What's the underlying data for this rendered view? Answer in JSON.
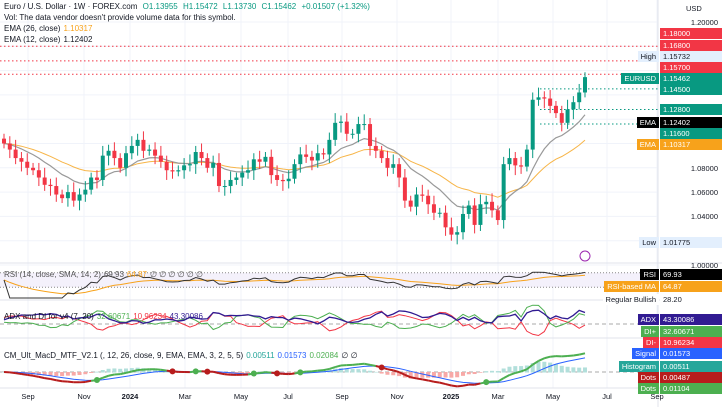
{
  "header": {
    "symbol": "Euro / U.S. Dollar · 1W · FOREX.com",
    "open": "O1.13955",
    "high": "H1.15472",
    "low": "L1.13730",
    "close": "C1.15462",
    "change": "+0.01507 (+1.32%)",
    "vol_note": "Vol: The data vendor doesn't provide volume data for this symbol.",
    "ema26_label": "EMA (26, close)",
    "ema26_value": "1.10317",
    "ema12_label": "EMA (12, close)",
    "ema12_value": "1.12402"
  },
  "rsi_legend": {
    "label": "RSI (14, close, SMA, 14, 2)",
    "rsi": "69.93",
    "ma": "64.87",
    "extras": "∅ ∅ ∅ ∅ ∅ ∅"
  },
  "adx_legend": {
    "label": "ADX and DI for v4 (7, 20)",
    "di_plus": "32.60671",
    "di_minus": "10.96234",
    "adx": "43.30086"
  },
  "macd_legend": {
    "label": "CM_Ult_MacD_MTF_V2.1 (, 12, 26, close, 9, EMA, EMA, 3, 2, 5, 5)",
    "hist": "0.00511",
    "signal": "0.01573",
    "macd": "0.02084",
    "extras": "∅ ∅"
  },
  "price_axis": {
    "currency": "USD",
    "ticks": [
      "1.20000",
      "1.08000",
      "1.06000",
      "1.04000",
      "1.00000"
    ],
    "tags": [
      {
        "label": "",
        "value": "1.18000",
        "color": "#f23645"
      },
      {
        "label": "",
        "value": "1.16800",
        "color": "#f23645"
      },
      {
        "label": "High",
        "value": "1.15732",
        "color": "#e3effd"
      },
      {
        "label": "",
        "value": "1.15700",
        "color": "#f23645"
      },
      {
        "label": "EURUSD",
        "value": "1.15462",
        "color": "#089981"
      },
      {
        "label": "",
        "value": "1.14500",
        "color": "#089981"
      },
      {
        "label": "",
        "value": "1.12800",
        "color": "#089981"
      },
      {
        "label": "EMA",
        "value": "1.12402",
        "color": "#000000"
      },
      {
        "label": "",
        "value": "1.11600",
        "color": "#089981"
      },
      {
        "label": "EMA",
        "value": "1.10317",
        "color": "#f7a21b"
      },
      {
        "label": "Low",
        "value": "1.01775",
        "color": "#e3effd"
      }
    ],
    "lower_tags": [
      {
        "label": "RSI",
        "value": "69.93",
        "color": "#000000"
      },
      {
        "label": "RSI-based MA",
        "value": "64.87",
        "color": "#f7a21b"
      },
      {
        "label": "Regular Bullish",
        "value": "28.20",
        "color": "#ffffff"
      },
      {
        "label": "ADX",
        "value": "43.30086",
        "color": "#311b92"
      },
      {
        "label": "DI+",
        "value": "32.60671",
        "color": "#4caf50"
      },
      {
        "label": "DI-",
        "value": "10.96234",
        "color": "#f23645"
      },
      {
        "label": "Signal",
        "value": "0.01573",
        "color": "#2962ff"
      },
      {
        "label": "Histogram",
        "value": "0.00511",
        "color": "#26a69a"
      },
      {
        "label": "Dots",
        "value": "0.00487",
        "color": "#b71c1c"
      },
      {
        "label": "Dots",
        "value": "0.01104",
        "color": "#4caf50"
      }
    ]
  },
  "time_axis": [
    "Sep",
    "Nov",
    "2024",
    "Mar",
    "May",
    "Jul",
    "Sep",
    "Nov",
    "2025",
    "Mar",
    "May",
    "Jul",
    "Sep"
  ],
  "chart_data": {
    "type": "candlestick",
    "interval": "1W",
    "start": "Aug 2023",
    "ylim": [
      1.0,
      1.2
    ],
    "closes": [
      1.1,
      1.095,
      1.088,
      1.085,
      1.08,
      1.078,
      1.072,
      1.066,
      1.065,
      1.058,
      1.055,
      1.06,
      1.053,
      1.058,
      1.062,
      1.072,
      1.07,
      1.09,
      1.094,
      1.088,
      1.08,
      1.092,
      1.098,
      1.103,
      1.094,
      1.095,
      1.09,
      1.085,
      1.078,
      1.077,
      1.078,
      1.082,
      1.083,
      1.093,
      1.088,
      1.08,
      1.084,
      1.065,
      1.065,
      1.07,
      1.072,
      1.076,
      1.078,
      1.087,
      1.085,
      1.089,
      1.074,
      1.07,
      1.069,
      1.071,
      1.083,
      1.091,
      1.089,
      1.086,
      1.092,
      1.091,
      1.103,
      1.117,
      1.118,
      1.108,
      1.108,
      1.116,
      1.116,
      1.098,
      1.094,
      1.088,
      1.08,
      1.083,
      1.072,
      1.053,
      1.048,
      1.058,
      1.057,
      1.05,
      1.043,
      1.043,
      1.031,
      1.025,
      1.027,
      1.042,
      1.049,
      1.033,
      1.05,
      1.052,
      1.045,
      1.037,
      1.083,
      1.088,
      1.082,
      1.081,
      1.095,
      1.136,
      1.138,
      1.137,
      1.131,
      1.125,
      1.117,
      1.128,
      1.134,
      1.142,
      1.15462
    ],
    "levels_red": [
      1.18,
      1.168,
      1.157
    ],
    "levels_teal": [
      1.145,
      1.128,
      1.116
    ]
  }
}
